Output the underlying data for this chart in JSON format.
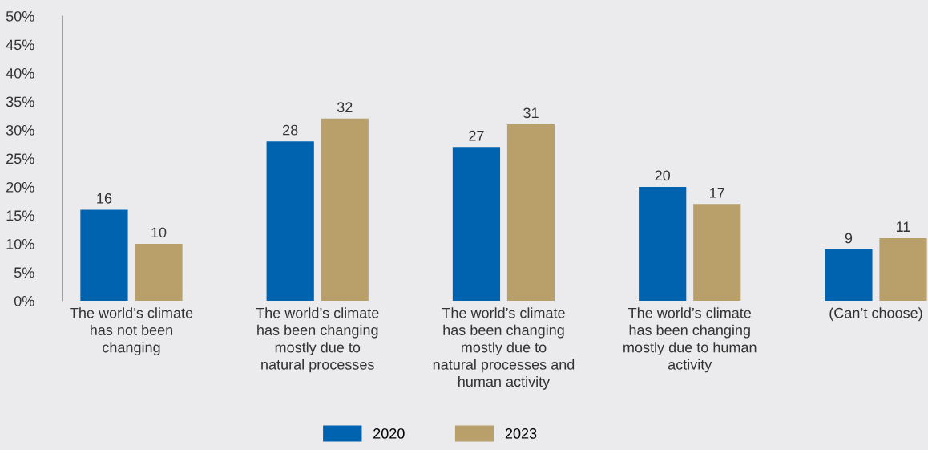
{
  "chart_data": {
    "type": "bar",
    "categories": [
      "The world’s climate\nhas not been\nchanging",
      "The world’s climate\nhas been changing\nmostly due to\nnatural processes",
      "The world’s climate\nhas been changing\nmostly due to\nnatural processes and\nhuman activity",
      "The world’s climate\nhas been changing\nmostly due to human\nactivity",
      "(Can’t choose)"
    ],
    "series": [
      {
        "name": "2020",
        "color": "#0063b0",
        "values": [
          16,
          28,
          27,
          20,
          9
        ]
      },
      {
        "name": "2023",
        "color": "#b9a06a",
        "values": [
          10,
          32,
          31,
          17,
          11
        ]
      }
    ],
    "ylim": [
      0,
      50
    ],
    "yticks": [
      {
        "value": 0,
        "label": "0%"
      },
      {
        "value": 5,
        "label": "5%"
      },
      {
        "value": 10,
        "label": "10%"
      },
      {
        "value": 15,
        "label": "15%"
      },
      {
        "value": 20,
        "label": "20%"
      },
      {
        "value": 25,
        "label": "25%"
      },
      {
        "value": 30,
        "label": "30%"
      },
      {
        "value": 35,
        "label": "35%"
      },
      {
        "value": 40,
        "label": "40%"
      },
      {
        "value": 45,
        "label": "45%"
      },
      {
        "value": 50,
        "label": "50%"
      }
    ],
    "data_labels": true,
    "grid": false,
    "legend": "bottom"
  }
}
